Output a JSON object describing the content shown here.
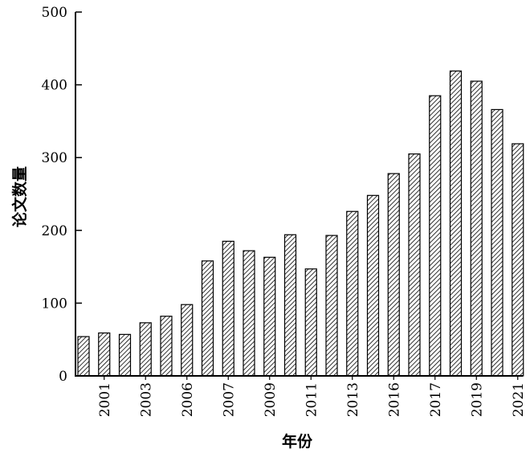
{
  "chart_data": {
    "type": "bar",
    "xlabel": "年份",
    "ylabel": "论文数量",
    "ylim": [
      0,
      500
    ],
    "yticks": [
      0,
      100,
      200,
      300,
      400,
      500
    ],
    "bar_fill": "hatched",
    "grid": false,
    "legend": "none",
    "x_tick_labels": [
      "2001",
      "2003",
      "2006",
      "2007",
      "2009",
      "2011",
      "2013",
      "2016",
      "2017",
      "2019",
      "2021"
    ],
    "values": [
      54,
      59,
      57,
      73,
      82,
      98,
      158,
      185,
      172,
      163,
      194,
      147,
      193,
      226,
      248,
      278,
      305,
      385,
      419,
      405,
      366,
      319
    ]
  }
}
